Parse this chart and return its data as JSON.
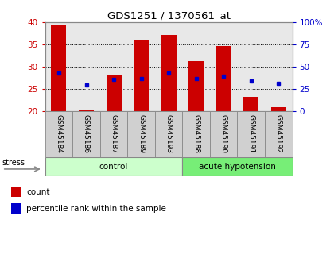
{
  "title": "GDS1251 / 1370561_at",
  "samples": [
    "GSM45184",
    "GSM45186",
    "GSM45187",
    "GSM45189",
    "GSM45193",
    "GSM45188",
    "GSM45190",
    "GSM45191",
    "GSM45192"
  ],
  "counts": [
    39.2,
    20.2,
    28.0,
    36.0,
    37.0,
    31.1,
    34.6,
    23.2,
    20.8
  ],
  "percentile_values": [
    28.5,
    25.8,
    27.0,
    27.2,
    28.5,
    27.2,
    27.8,
    26.8,
    26.2
  ],
  "groups": [
    "control",
    "control",
    "control",
    "control",
    "control",
    "acute hypotension",
    "acute hypotension",
    "acute hypotension",
    "acute hypotension"
  ],
  "control_color": "#ccffcc",
  "acute_color": "#77ee77",
  "bar_color": "#cc0000",
  "dot_color": "#0000cc",
  "ylim_left": [
    20,
    40
  ],
  "ylim_right": [
    0,
    100
  ],
  "yticks_left": [
    20,
    25,
    30,
    35,
    40
  ],
  "yticks_right": [
    0,
    25,
    50,
    75,
    100
  ],
  "ytick_labels_right": [
    "0",
    "25",
    "50",
    "75",
    "100%"
  ],
  "bar_width": 0.55,
  "background_color": "#ffffff",
  "plot_bg_color": "#e8e8e8",
  "tick_label_bg": "#d0d0d0"
}
